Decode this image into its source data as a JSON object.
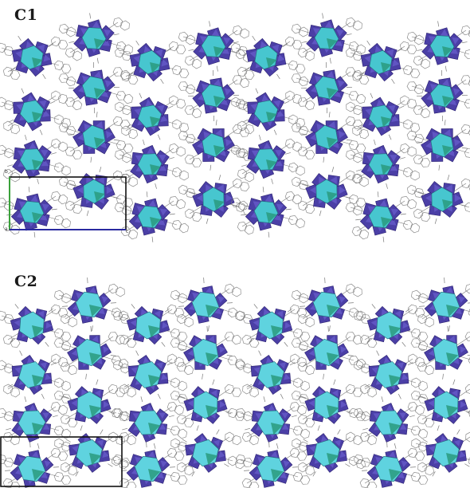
{
  "panels": [
    {
      "id": "c1",
      "label": "C1",
      "axis_labels": {
        "origin": "a",
        "vertical": "b",
        "horizontal": "c"
      },
      "colors": {
        "octahedra": "#4b3fa6",
        "central_polyhedron": "#47c6cf",
        "central_dark": "#2a9a7e",
        "ligand": "#7a7a7a",
        "cell_vertical": "#3aa13a",
        "cell_horizontal": "#2a2aa0",
        "cell_frame": "#111111"
      }
    },
    {
      "id": "c2",
      "label": "C2",
      "colors": {
        "octahedra": "#4b3fa6",
        "central_polyhedron": "#5fd3df",
        "central_dark": "#2a9a7e",
        "ligand": "#7a7a7a",
        "cell_frame": "#111111"
      }
    }
  ]
}
